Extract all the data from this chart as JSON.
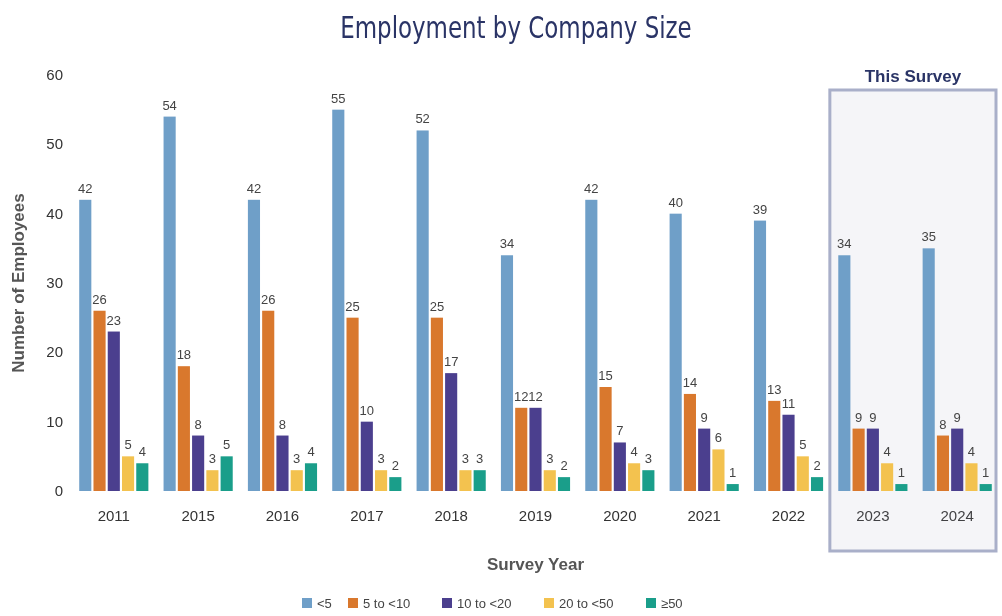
{
  "chart_data": {
    "type": "bar",
    "title": "Employment by Company Size",
    "xlabel": "Survey Year",
    "ylabel": "Number of Employees",
    "categories": [
      "2011",
      "2015",
      "2016",
      "2017",
      "2018",
      "2019",
      "2020",
      "2021",
      "2022",
      "2023",
      "2024"
    ],
    "series": [
      {
        "name": "<5",
        "color": "#6f9fc8",
        "values": [
          42,
          54,
          42,
          55,
          52,
          34,
          42,
          40,
          39,
          34,
          35
        ]
      },
      {
        "name": "5 to <10",
        "color": "#d9782d",
        "values": [
          26,
          18,
          26,
          25,
          25,
          12,
          15,
          14,
          13,
          9,
          8
        ]
      },
      {
        "name": "10 to <20",
        "color": "#4b3f8e",
        "values": [
          23,
          8,
          8,
          10,
          17,
          12,
          7,
          9,
          11,
          9,
          9
        ]
      },
      {
        "name": "20 to <50",
        "color": "#f3c24f",
        "values": [
          5,
          3,
          3,
          3,
          3,
          3,
          4,
          6,
          5,
          4,
          4
        ]
      },
      {
        "name": "≥50",
        "color": "#1a9e8a",
        "values": [
          4,
          5,
          4,
          2,
          3,
          2,
          3,
          1,
          2,
          1,
          1
        ]
      }
    ],
    "ylim": [
      0,
      60
    ],
    "yticks": [
      0,
      10,
      20,
      30,
      40,
      50,
      60
    ],
    "grid": false,
    "legend": "bottom",
    "data_labels": true,
    "bands": [
      {
        "axis": "x",
        "from": "2023",
        "to": "2024",
        "label": "This Survey",
        "color": "#a9afc9"
      }
    ]
  }
}
